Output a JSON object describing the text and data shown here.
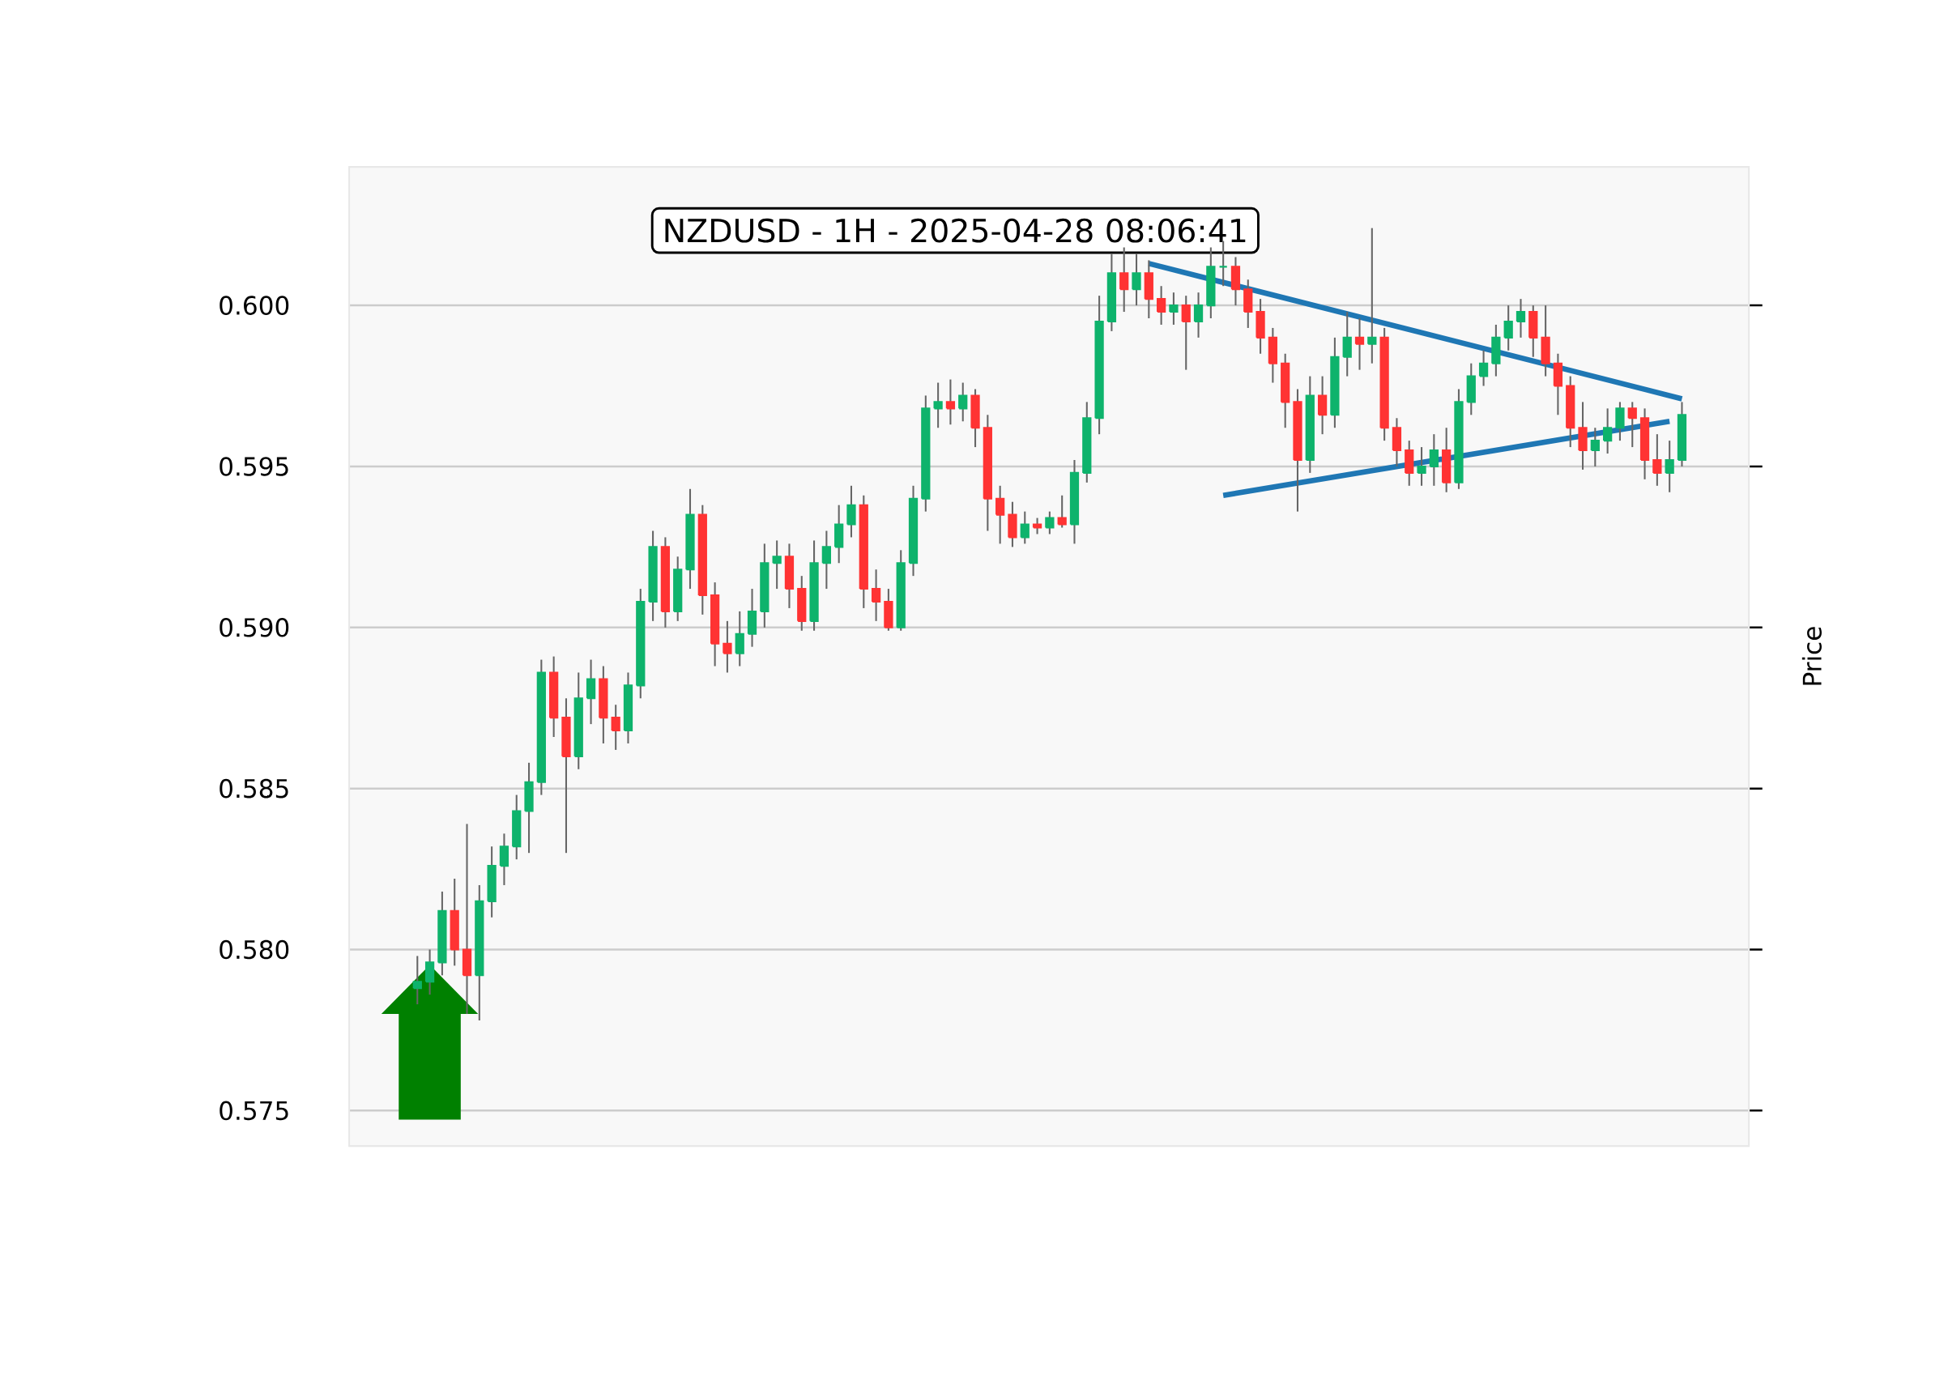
{
  "chart_data": {
    "type": "candlestick",
    "title": "NZDUSD - 1H - 2025-04-28 08:06:41",
    "ylabel": "Price",
    "categories": [
      null,
      null,
      null,
      null,
      null,
      null,
      null,
      null,
      null,
      null,
      null,
      null,
      null,
      null,
      null,
      null,
      null,
      null,
      null,
      null,
      null,
      null,
      null,
      null,
      null,
      null,
      null,
      null,
      null,
      null,
      null,
      null,
      null,
      null,
      null,
      null,
      null,
      null,
      null,
      null,
      null,
      null,
      null,
      null,
      null,
      null,
      null,
      null,
      null,
      null,
      null,
      null,
      null,
      null,
      null,
      null,
      null,
      null,
      null,
      null,
      null,
      null,
      null,
      null,
      null,
      null,
      null,
      null,
      null,
      null,
      null,
      null,
      null,
      null,
      null,
      null,
      null,
      null,
      null,
      null,
      null,
      null,
      null,
      null,
      null,
      null,
      null,
      null,
      null,
      null,
      null,
      null,
      null,
      null,
      null,
      null,
      null,
      null,
      null,
      null,
      null,
      null,
      null
    ],
    "ohlc": [
      [
        0.5788,
        0.5798,
        0.5783,
        0.579
      ],
      [
        0.579,
        0.58,
        0.5786,
        0.5796
      ],
      [
        0.5796,
        0.5818,
        0.5792,
        0.5812
      ],
      [
        0.5812,
        0.5822,
        0.5795,
        0.58
      ],
      [
        0.58,
        0.5839,
        0.578,
        0.5792
      ],
      [
        0.5792,
        0.582,
        0.5778,
        0.5815
      ],
      [
        0.5815,
        0.5832,
        0.581,
        0.5826
      ],
      [
        0.5826,
        0.5836,
        0.582,
        0.5832
      ],
      [
        0.5832,
        0.5848,
        0.5828,
        0.5843
      ],
      [
        0.5843,
        0.5858,
        0.583,
        0.5852
      ],
      [
        0.5852,
        0.589,
        0.5848,
        0.5886
      ],
      [
        0.5886,
        0.5891,
        0.5866,
        0.5872
      ],
      [
        0.5872,
        0.5878,
        0.583,
        0.586
      ],
      [
        0.586,
        0.5886,
        0.5856,
        0.5878
      ],
      [
        0.5878,
        0.589,
        0.587,
        0.5884
      ],
      [
        0.5884,
        0.5888,
        0.5864,
        0.5872
      ],
      [
        0.5872,
        0.5876,
        0.5862,
        0.5868
      ],
      [
        0.5868,
        0.5886,
        0.5864,
        0.5882
      ],
      [
        0.5882,
        0.5912,
        0.5878,
        0.5908
      ],
      [
        0.5908,
        0.593,
        0.5902,
        0.5925
      ],
      [
        0.5925,
        0.5928,
        0.59,
        0.5905
      ],
      [
        0.5905,
        0.5922,
        0.5902,
        0.5918
      ],
      [
        0.5918,
        0.5943,
        0.5912,
        0.5935
      ],
      [
        0.5935,
        0.5938,
        0.5904,
        0.591
      ],
      [
        0.591,
        0.5914,
        0.5888,
        0.5895
      ],
      [
        0.5895,
        0.5902,
        0.5886,
        0.5892
      ],
      [
        0.5892,
        0.5905,
        0.5888,
        0.5898
      ],
      [
        0.5898,
        0.5912,
        0.5894,
        0.5905
      ],
      [
        0.5905,
        0.5926,
        0.59,
        0.592
      ],
      [
        0.592,
        0.5927,
        0.5912,
        0.5922
      ],
      [
        0.5922,
        0.5926,
        0.5906,
        0.5912
      ],
      [
        0.5912,
        0.5916,
        0.5899,
        0.5902
      ],
      [
        0.5902,
        0.5927,
        0.5899,
        0.592
      ],
      [
        0.592,
        0.593,
        0.5912,
        0.5925
      ],
      [
        0.5925,
        0.5938,
        0.592,
        0.5932
      ],
      [
        0.5932,
        0.5944,
        0.5928,
        0.5938
      ],
      [
        0.5938,
        0.5941,
        0.5906,
        0.5912
      ],
      [
        0.5912,
        0.5918,
        0.5902,
        0.5908
      ],
      [
        0.5908,
        0.5912,
        0.5899,
        0.59
      ],
      [
        0.59,
        0.5924,
        0.5899,
        0.592
      ],
      [
        0.592,
        0.5944,
        0.5916,
        0.594
      ],
      [
        0.594,
        0.5972,
        0.5936,
        0.5968
      ],
      [
        0.5968,
        0.5976,
        0.5962,
        0.597
      ],
      [
        0.597,
        0.5977,
        0.5963,
        0.5968
      ],
      [
        0.5968,
        0.5976,
        0.5964,
        0.5972
      ],
      [
        0.5972,
        0.5974,
        0.5956,
        0.5962
      ],
      [
        0.5962,
        0.5966,
        0.593,
        0.594
      ],
      [
        0.594,
        0.5944,
        0.5926,
        0.5935
      ],
      [
        0.5935,
        0.5939,
        0.5925,
        0.5928
      ],
      [
        0.5928,
        0.5936,
        0.5926,
        0.5932
      ],
      [
        0.5932,
        0.5934,
        0.5929,
        0.5931
      ],
      [
        0.5931,
        0.5936,
        0.5929,
        0.5934
      ],
      [
        0.5934,
        0.5941,
        0.5931,
        0.5932
      ],
      [
        0.5932,
        0.5952,
        0.5926,
        0.5948
      ],
      [
        0.5948,
        0.597,
        0.5945,
        0.5965
      ],
      [
        0.5965,
        0.6003,
        0.596,
        0.5995
      ],
      [
        0.5995,
        0.6016,
        0.5992,
        0.601
      ],
      [
        0.601,
        0.6018,
        0.5998,
        0.6005
      ],
      [
        0.6005,
        0.6016,
        0.6,
        0.601
      ],
      [
        0.601,
        0.6014,
        0.5996,
        0.6002
      ],
      [
        0.6002,
        0.6006,
        0.5994,
        0.5998
      ],
      [
        0.5998,
        0.6004,
        0.5994,
        0.6
      ],
      [
        0.6,
        0.6003,
        0.598,
        0.5995
      ],
      [
        0.5995,
        0.6004,
        0.599,
        0.6
      ],
      [
        0.6,
        0.6018,
        0.5996,
        0.6012
      ],
      [
        0.6012,
        0.602,
        0.6006,
        0.6012
      ],
      [
        0.6012,
        0.6015,
        0.6,
        0.6005
      ],
      [
        0.6005,
        0.6008,
        0.5993,
        0.5998
      ],
      [
        0.5998,
        0.6002,
        0.5985,
        0.599
      ],
      [
        0.599,
        0.5993,
        0.5976,
        0.5982
      ],
      [
        0.5982,
        0.5985,
        0.5962,
        0.597
      ],
      [
        0.597,
        0.5974,
        0.5936,
        0.5952
      ],
      [
        0.5952,
        0.5978,
        0.5948,
        0.5972
      ],
      [
        0.5972,
        0.5978,
        0.596,
        0.5966
      ],
      [
        0.5966,
        0.599,
        0.5962,
        0.5984
      ],
      [
        0.5984,
        0.5998,
        0.5978,
        0.599
      ],
      [
        0.599,
        0.5996,
        0.598,
        0.5988
      ],
      [
        0.5988,
        0.6024,
        0.5982,
        0.599
      ],
      [
        0.599,
        0.5993,
        0.5958,
        0.5962
      ],
      [
        0.5962,
        0.5965,
        0.595,
        0.5955
      ],
      [
        0.5955,
        0.5958,
        0.5944,
        0.5948
      ],
      [
        0.5948,
        0.5956,
        0.5944,
        0.595
      ],
      [
        0.595,
        0.596,
        0.5944,
        0.5955
      ],
      [
        0.5955,
        0.5962,
        0.5942,
        0.5945
      ],
      [
        0.5945,
        0.5974,
        0.5943,
        0.597
      ],
      [
        0.597,
        0.5982,
        0.5966,
        0.5978
      ],
      [
        0.5978,
        0.5986,
        0.5975,
        0.5982
      ],
      [
        0.5982,
        0.5994,
        0.5978,
        0.599
      ],
      [
        0.599,
        0.6,
        0.5986,
        0.5995
      ],
      [
        0.5995,
        0.6002,
        0.599,
        0.5998
      ],
      [
        0.5998,
        0.6,
        0.5984,
        0.599
      ],
      [
        0.599,
        0.6,
        0.5978,
        0.5982
      ],
      [
        0.5982,
        0.5985,
        0.5966,
        0.5975
      ],
      [
        0.5975,
        0.5978,
        0.5956,
        0.5962
      ],
      [
        0.5962,
        0.597,
        0.5949,
        0.5955
      ],
      [
        0.5955,
        0.5962,
        0.595,
        0.5958
      ],
      [
        0.5958,
        0.5968,
        0.5954,
        0.5962
      ],
      [
        0.5962,
        0.597,
        0.5958,
        0.5968
      ],
      [
        0.5968,
        0.597,
        0.5956,
        0.5965
      ],
      [
        0.5965,
        0.5968,
        0.5946,
        0.5952
      ],
      [
        0.5952,
        0.596,
        0.5944,
        0.5948
      ],
      [
        0.5948,
        0.5958,
        0.5942,
        0.5952
      ],
      [
        0.5952,
        0.597,
        0.595,
        0.5966
      ]
    ],
    "series": [
      {
        "type": "line",
        "color": "#1f77b4",
        "values": [
          null,
          null,
          null,
          null,
          null,
          null,
          null,
          null,
          null,
          null,
          null,
          null,
          null,
          null,
          null,
          null,
          null,
          null,
          null,
          null,
          null,
          null,
          null,
          null,
          null,
          null,
          null,
          null,
          null,
          null,
          null,
          null,
          null,
          null,
          null,
          null,
          null,
          null,
          null,
          null,
          null,
          null,
          null,
          null,
          null,
          null,
          null,
          null,
          null,
          null,
          null,
          null,
          null,
          null,
          null,
          null,
          null,
          null,
          null,
          0.6013,
          null,
          null,
          null,
          null,
          null,
          null,
          null,
          null,
          null,
          null,
          null,
          null,
          null,
          null,
          null,
          null,
          null,
          null,
          null,
          null,
          null,
          null,
          null,
          null,
          null,
          null,
          null,
          null,
          null,
          null,
          null,
          null,
          null,
          null,
          null,
          null,
          null,
          null,
          null,
          null,
          null,
          null,
          0.5971
        ]
      },
      {
        "type": "line",
        "color": "#1f77b4",
        "values": [
          null,
          null,
          null,
          null,
          null,
          null,
          null,
          null,
          null,
          null,
          null,
          null,
          null,
          null,
          null,
          null,
          null,
          null,
          null,
          null,
          null,
          null,
          null,
          null,
          null,
          null,
          null,
          null,
          null,
          null,
          null,
          null,
          null,
          null,
          null,
          null,
          null,
          null,
          null,
          null,
          null,
          null,
          null,
          null,
          null,
          null,
          null,
          null,
          null,
          null,
          null,
          null,
          null,
          null,
          null,
          null,
          null,
          null,
          null,
          null,
          null,
          null,
          null,
          null,
          null,
          0.5941,
          null,
          null,
          null,
          null,
          null,
          null,
          null,
          null,
          null,
          null,
          null,
          null,
          null,
          null,
          null,
          null,
          null,
          null,
          null,
          null,
          null,
          null,
          null,
          null,
          null,
          null,
          null,
          null,
          null,
          null,
          null,
          null,
          null,
          null,
          null,
          0.5964,
          null
        ]
      }
    ],
    "ylim": [
      0.5739,
      0.6043
    ],
    "yticks": [
      0.575,
      {
        "value": 0.58,
        "label": "0.580"
      },
      0.585,
      {
        "value": 0.59,
        "label": "0.590"
      },
      0.595,
      {
        "value": 0.6,
        "label": "0.600"
      }
    ],
    "grid": "y",
    "tick_labels": "y"
  }
}
